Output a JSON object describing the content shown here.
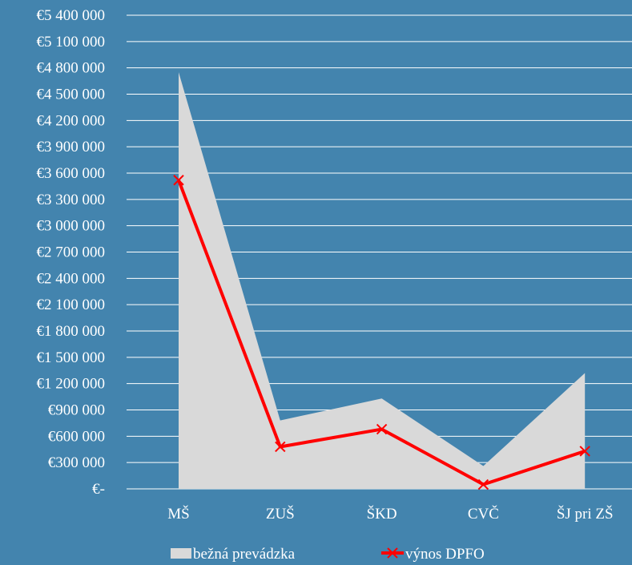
{
  "chart_data": {
    "type": "area",
    "title": "",
    "xlabel": "",
    "ylabel": "",
    "categories": [
      "MŠ",
      "ZUŠ",
      "ŠKD",
      "CVČ",
      "ŠJ pri ZŠ"
    ],
    "ylim": [
      0,
      5400000
    ],
    "ytick_labels": [
      "€-",
      "€300 000",
      "€600 000",
      "€900 000",
      "€1 200 000",
      "€1 500 000",
      "€1 800 000",
      "€2 100 000",
      "€2 400 000",
      "€2 700 000",
      "€3 000 000",
      "€3 300 000",
      "€3 600 000",
      "€3 900 000",
      "€4 200 000",
      "€4 500 000",
      "€4 800 000",
      "€5 100 000",
      "€5 400 000"
    ],
    "ytick_values": [
      0,
      300000,
      600000,
      900000,
      1200000,
      1500000,
      1800000,
      2100000,
      2400000,
      2700000,
      3000000,
      3300000,
      3600000,
      3900000,
      4200000,
      4500000,
      4800000,
      5100000,
      5400000
    ],
    "grid": true,
    "legend_position": "bottom",
    "series": [
      {
        "name": "bežná prevádzka",
        "kind": "area",
        "color": "#d9d9d9",
        "values": [
          4750000,
          780000,
          1030000,
          260000,
          1320000
        ]
      },
      {
        "name": "výnos DPFO",
        "kind": "line",
        "color": "#ff0000",
        "marker": "x",
        "values": [
          3520000,
          480000,
          680000,
          50000,
          430000
        ]
      }
    ]
  }
}
